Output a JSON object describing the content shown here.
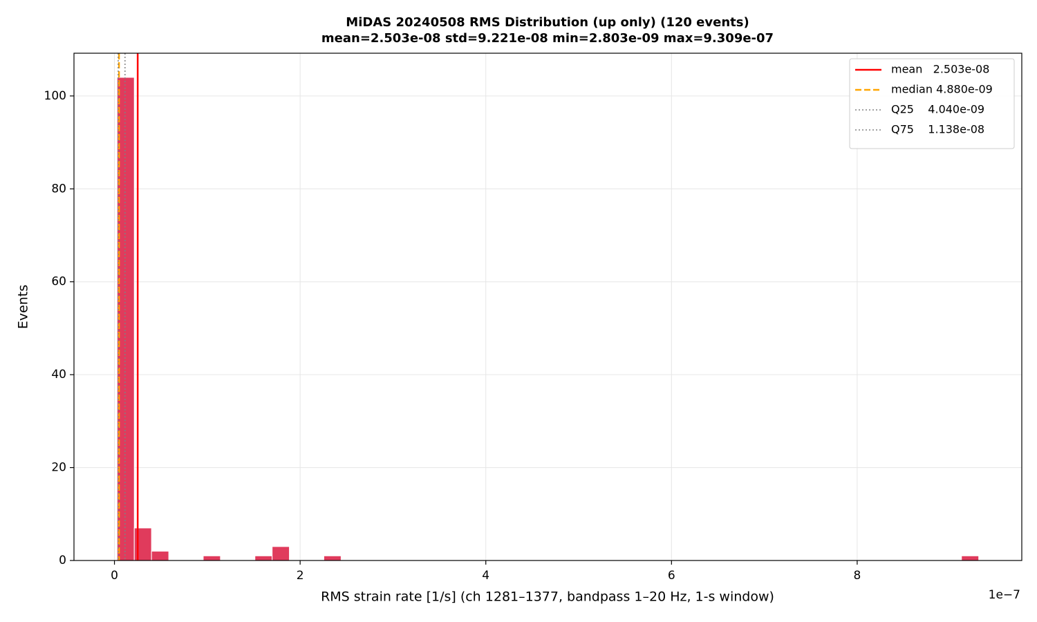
{
  "chart_data": {
    "type": "histogram",
    "title": "MiDAS 20240508  RMS Distribution  (up only)  (120 events)",
    "subtitle": "mean=2.503e-08  std=9.221e-08  min=2.803e-09  max=9.309e-07",
    "x_label": "RMS strain rate [1/s]  (ch 1281–1377, bandpass 1–20 Hz, 1-s window)",
    "y_label": "Events",
    "x_offset_label": "1e−7",
    "bins": [
      0.028,
      0.2136,
      0.3992,
      0.5849,
      0.7705,
      0.9561,
      1.1417,
      1.3273,
      1.513,
      1.6986,
      1.8842,
      2.0698,
      2.2554,
      2.4411,
      2.6267,
      2.8123,
      2.9979,
      3.1835,
      3.3692,
      3.5548,
      3.7404,
      3.926,
      4.1116,
      4.2973,
      4.4829,
      4.6685,
      4.8541,
      5.0397,
      5.2254,
      5.411,
      5.5966,
      5.7822,
      5.9678,
      6.1535,
      6.3391,
      6.5247,
      6.7103,
      6.8959,
      7.0816,
      7.2672,
      7.4528,
      7.6384,
      7.824,
      8.0097,
      8.1953,
      8.3809,
      8.5665,
      8.7521,
      8.9378,
      9.1234,
      9.309
    ],
    "values": [
      104,
      7,
      2,
      0,
      0,
      1,
      0,
      0,
      1,
      3,
      0,
      0,
      1,
      0,
      0,
      0,
      0,
      0,
      0,
      0,
      0,
      0,
      0,
      0,
      0,
      0,
      0,
      0,
      0,
      0,
      0,
      0,
      0,
      0,
      0,
      0,
      0,
      0,
      0,
      0,
      0,
      0,
      0,
      0,
      0,
      0,
      0,
      0,
      0,
      1
    ],
    "color": "#e03b5c",
    "reference_lines": [
      {
        "name": "mean",
        "label": "mean   2.503e-08",
        "value": 0.2503,
        "color": "#ff0000",
        "style": "solid"
      },
      {
        "name": "median",
        "label": "median 4.880e-09",
        "value": 0.0488,
        "color": "#ffa500",
        "style": "dashed"
      },
      {
        "name": "Q25",
        "label": "Q25    4.040e-09",
        "value": 0.0404,
        "color": "#808080",
        "style": "dotted"
      },
      {
        "name": "Q75",
        "label": "Q75    1.138e-08",
        "value": 0.1138,
        "color": "#808080",
        "style": "dotted"
      }
    ],
    "xlim": [
      -0.436,
      9.773
    ],
    "ylim": [
      0,
      109.2
    ],
    "xticks": [
      0,
      2,
      4,
      6,
      8
    ],
    "yticks": [
      0,
      20,
      40,
      60,
      80,
      100
    ],
    "grid": true,
    "legend": "upper right"
  }
}
